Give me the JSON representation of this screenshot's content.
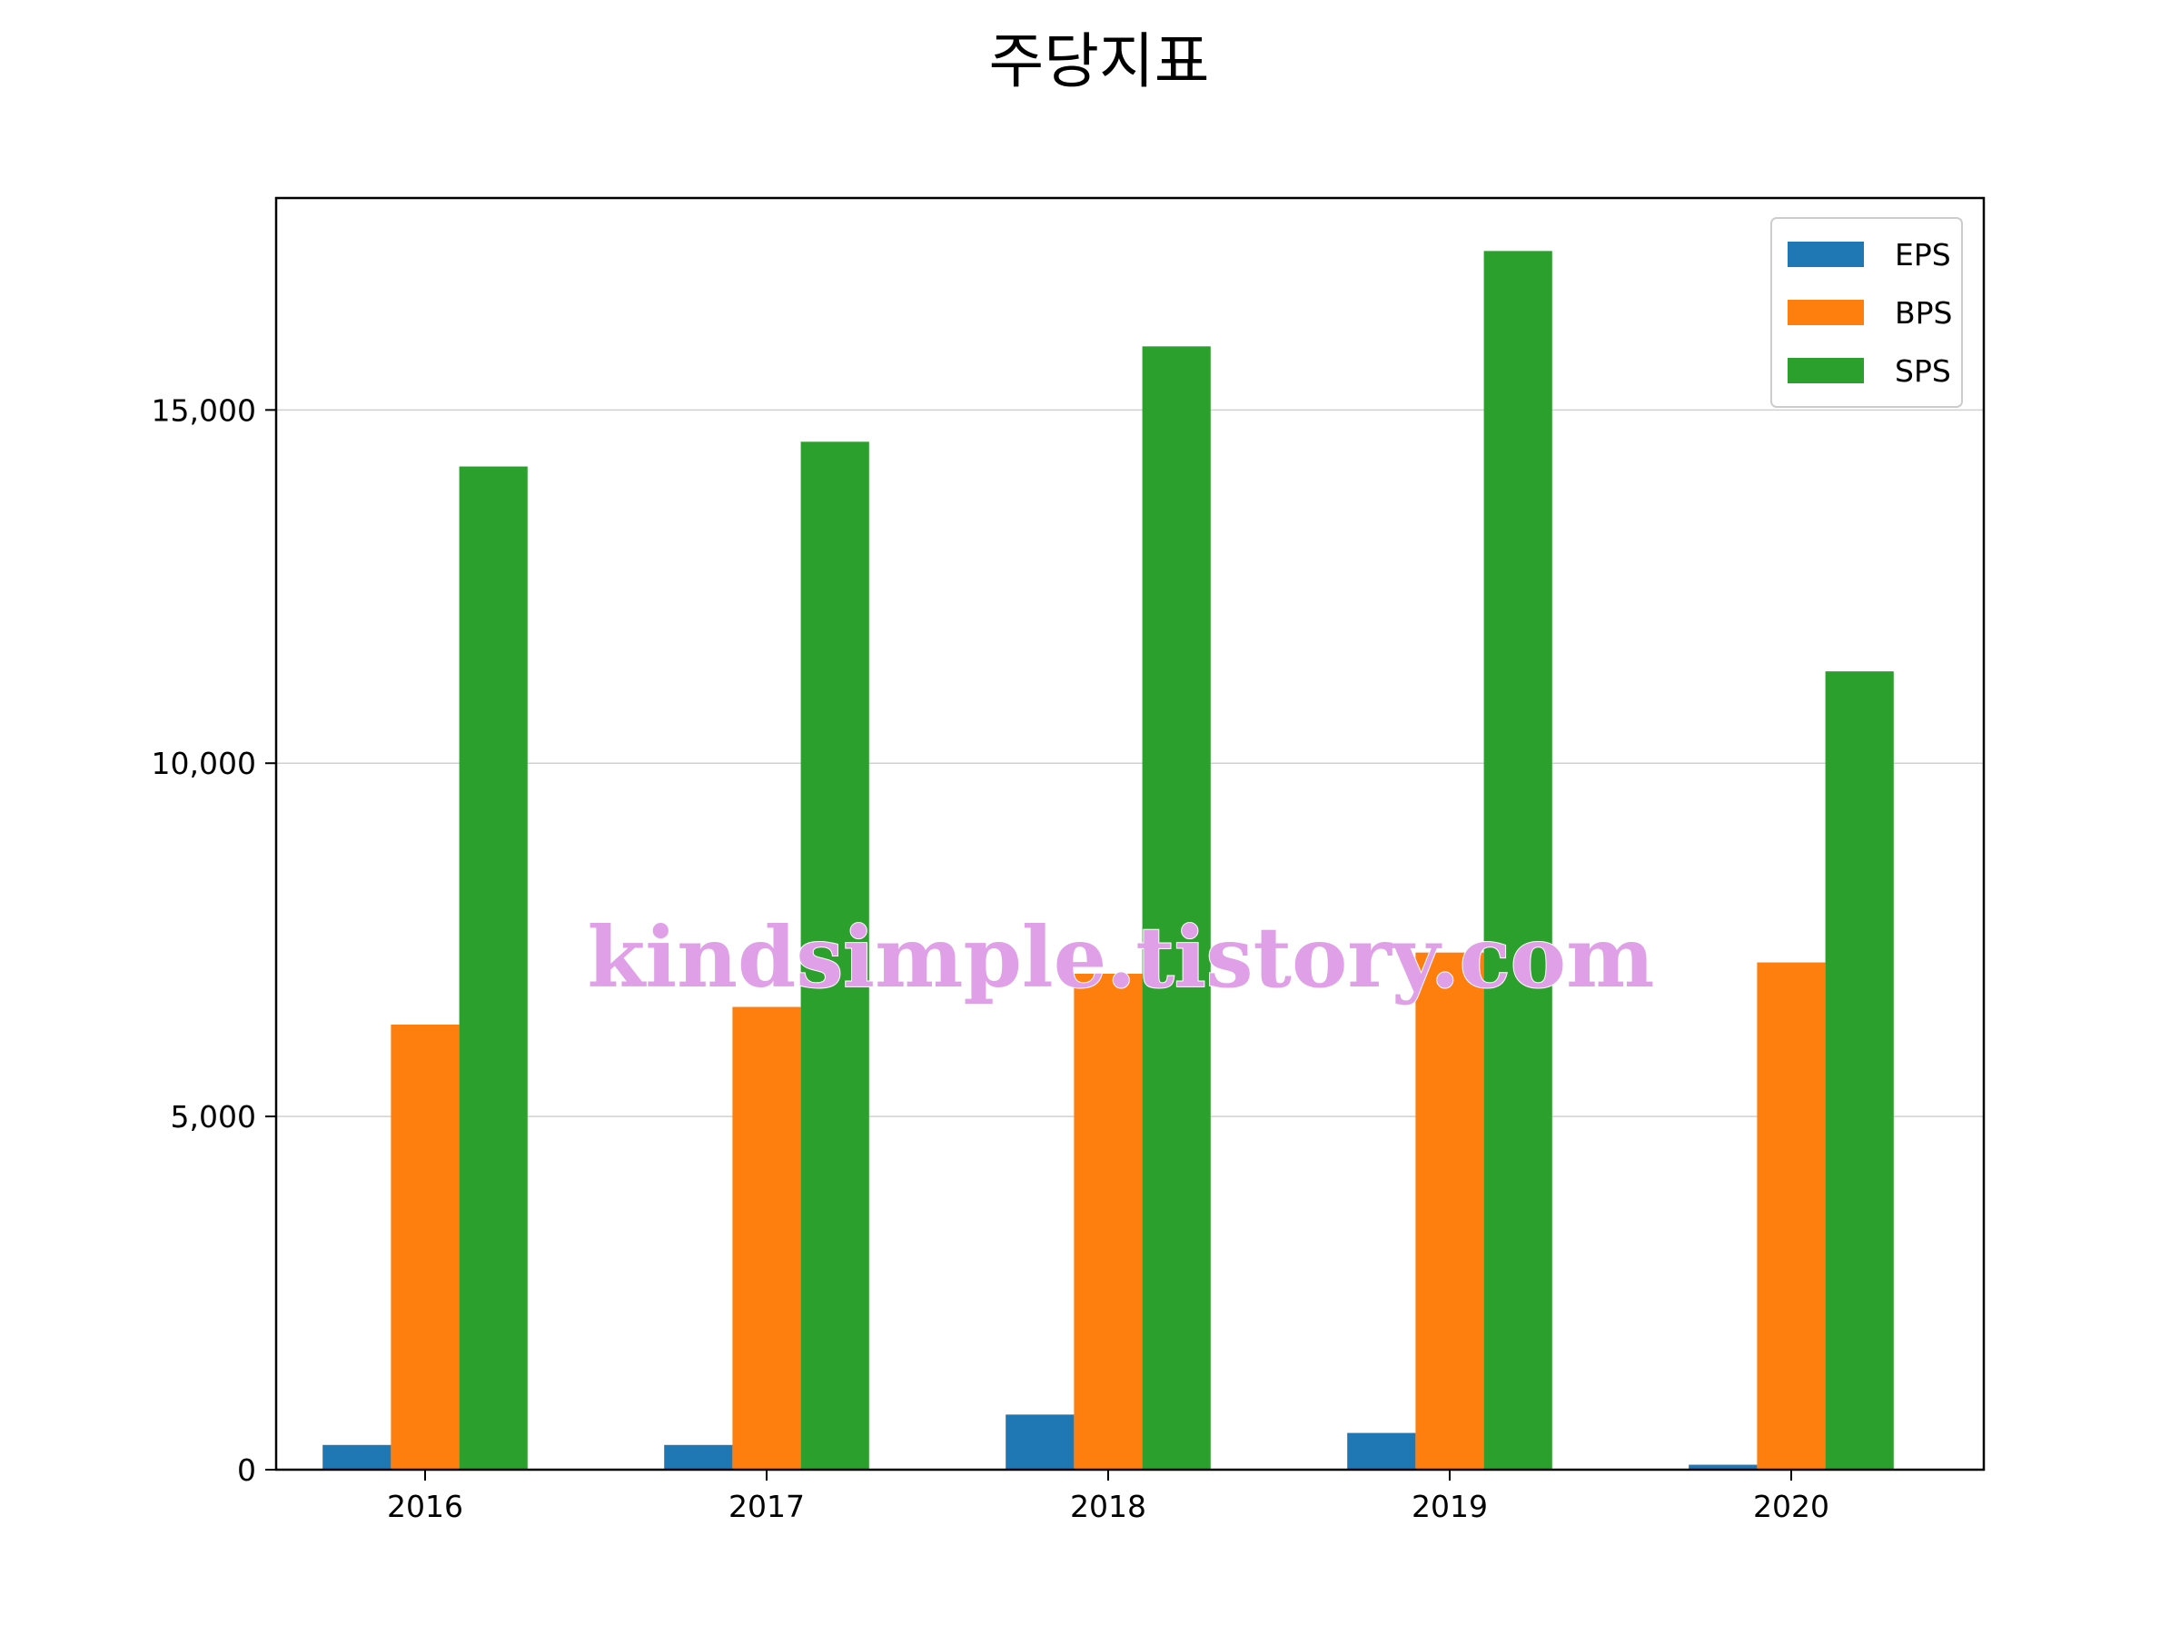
{
  "chart_data": {
    "type": "bar",
    "title": "주당지표",
    "xlabel": "",
    "ylabel": "",
    "categories": [
      "2016",
      "2017",
      "2018",
      "2019",
      "2020"
    ],
    "series": [
      {
        "name": "EPS",
        "color": "#1f77b4",
        "values": [
          350,
          350,
          780,
          520,
          70
        ]
      },
      {
        "name": "BPS",
        "color": "#ff7f0e",
        "values": [
          6300,
          6550,
          7020,
          7320,
          7180
        ]
      },
      {
        "name": "SPS",
        "color": "#2ca02c",
        "values": [
          14200,
          14550,
          15900,
          17250,
          11300
        ]
      }
    ],
    "ylim": [
      0,
      18000
    ],
    "yticks": [
      0,
      5000,
      10000,
      15000
    ],
    "ytick_labels": [
      "0",
      "5,000",
      "10,000",
      "15,000"
    ],
    "grid": "horizontal",
    "legend": "top-right"
  },
  "watermark": {
    "text": "kindsimple.tistory.com",
    "color": "#e0a0e8"
  }
}
